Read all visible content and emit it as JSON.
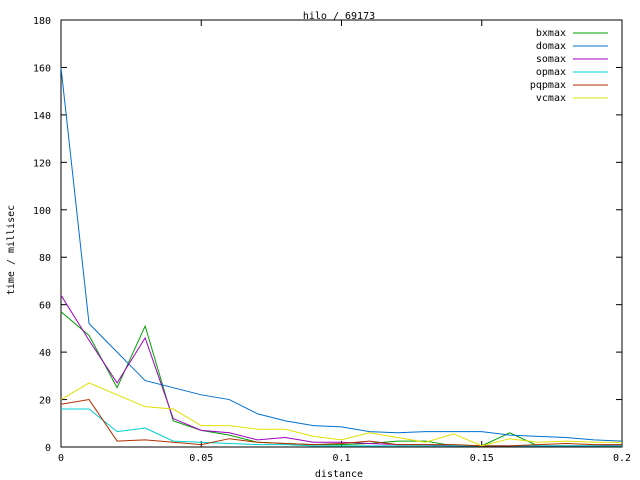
{
  "chart_data": {
    "type": "line",
    "title": "hilo / 69173",
    "xlabel": "distance",
    "ylabel": "time / millisec",
    "xlim": [
      0,
      0.2
    ],
    "ylim": [
      0,
      180
    ],
    "x_ticks": [
      "0",
      "0.05",
      "0.1",
      "0.15",
      "0.2"
    ],
    "y_ticks": [
      "0",
      "20",
      "40",
      "60",
      "80",
      "100",
      "120",
      "140",
      "160",
      "180"
    ],
    "grid": false,
    "legend_position": "top-right",
    "x": [
      0,
      0.01,
      0.02,
      0.03,
      0.04,
      0.05,
      0.06,
      0.07,
      0.08,
      0.09,
      0.1,
      0.11,
      0.12,
      0.13,
      0.14,
      0.15,
      0.16,
      0.17,
      0.18,
      0.19,
      0.2
    ],
    "series": [
      {
        "name": "bxmax",
        "color": "#00a000",
        "values": [
          57,
          47,
          25,
          51,
          11,
          7,
          5,
          2,
          1.5,
          1,
          1,
          1.5,
          2.5,
          2.5,
          0.5,
          0.5,
          6,
          0.5,
          0.5,
          0.5,
          0.5
        ]
      },
      {
        "name": "domax",
        "color": "#0070d0",
        "values": [
          160,
          52,
          40,
          28,
          25,
          22,
          20,
          14,
          11,
          9,
          8.5,
          6.5,
          6,
          6.5,
          6.5,
          6.5,
          5,
          4.5,
          4,
          3,
          2.5
        ]
      },
      {
        "name": "somax",
        "color": "#a000c0",
        "values": [
          64,
          45,
          27,
          46,
          12,
          7,
          6,
          3,
          4,
          2,
          2,
          1.5,
          1,
          1,
          0.5,
          0.5,
          0.5,
          0.5,
          0.5,
          0.5,
          1
        ]
      },
      {
        "name": "opmax",
        "color": "#00d0d0",
        "values": [
          16,
          16,
          6.5,
          8,
          2.5,
          2,
          1.5,
          1,
          1,
          0.5,
          0.5,
          0.5,
          0.5,
          0.5,
          0.5,
          0.5,
          0.5,
          0.5,
          0.5,
          0.5,
          0.5
        ]
      },
      {
        "name": "pqpmax",
        "color": "#b03000",
        "values": [
          18,
          20,
          2.5,
          3,
          2,
          1,
          3.5,
          2,
          1.5,
          1,
          1.5,
          2.5,
          1,
          1,
          1,
          0.5,
          0.5,
          1,
          1.5,
          1,
          1
        ]
      },
      {
        "name": "vcmax",
        "color": "#e0e000",
        "values": [
          20,
          27,
          22,
          17,
          16,
          9,
          9,
          7.5,
          7.5,
          4.5,
          3,
          6,
          4,
          2,
          5.5,
          0.5,
          3.5,
          2,
          2.5,
          2,
          2
        ]
      }
    ]
  }
}
